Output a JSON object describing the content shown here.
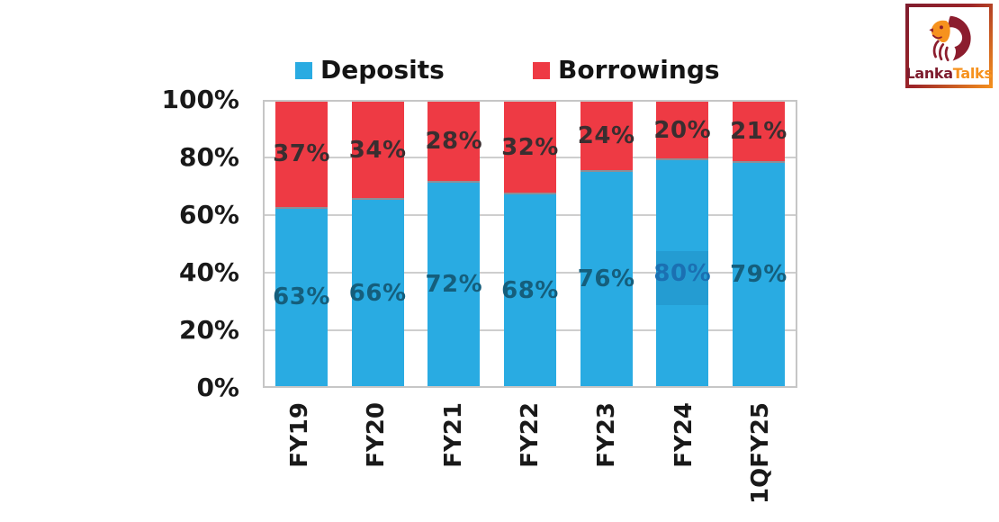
{
  "brand": {
    "logo_text_primary": "Lanka",
    "logo_text_secondary": "Talks",
    "primary_color": "#7e1c2e",
    "secondary_color": "#f6921e"
  },
  "chart_data": {
    "type": "bar",
    "stacked": true,
    "stacked_percent": true,
    "title": "",
    "categories": [
      "FY19",
      "FY20",
      "FY21",
      "FY22",
      "FY23",
      "FY24",
      "1QFY25"
    ],
    "series": [
      {
        "name": "Deposits",
        "color": "#29abe2",
        "label_color": "#155e7c",
        "values": [
          63,
          66,
          72,
          68,
          76,
          80,
          79
        ]
      },
      {
        "name": "Borrowings",
        "color": "#ee3a44",
        "label_color": "#3a2e30",
        "values": [
          37,
          34,
          28,
          32,
          24,
          20,
          21
        ]
      }
    ],
    "value_suffix": "%",
    "y_ticks": [
      100,
      80,
      60,
      40,
      20,
      0
    ],
    "y_tick_suffix": "%",
    "ylim": [
      0,
      100
    ],
    "grid": true,
    "legend_position": "top",
    "special_label": {
      "series": "Deposits",
      "index": 5,
      "color": "#1b70b2"
    }
  }
}
